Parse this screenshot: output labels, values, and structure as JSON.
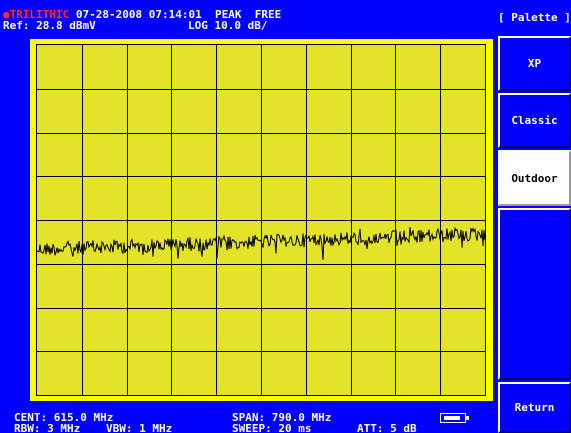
{
  "header": {
    "brand": "TRILITHIC",
    "datetime": "07-28-2008 07:14:01",
    "detector": "PEAK",
    "run_mode": "FREE",
    "ref_level": "Ref: 28.8 dBmV",
    "scale": "LOG 10.0 dB/"
  },
  "footer": {
    "center": "CENT: 615.0 MHz",
    "span": "SPAN: 790.0 MHz",
    "rbw": "RBW: 3 MHz",
    "vbw": "VBW: 1 MHz",
    "sweep": "SWEEP: 20 ms",
    "att": "ATT: 5 dB"
  },
  "menu": {
    "title": "[ Palette ]",
    "items": [
      {
        "label": "XP",
        "selected": false
      },
      {
        "label": "Classic",
        "selected": false
      },
      {
        "label": "Outdoor",
        "selected": true
      },
      {
        "label": "",
        "selected": false
      },
      {
        "label": "Return",
        "selected": false
      }
    ]
  },
  "colors": {
    "background": "#0000ff",
    "graticule_bg": "#ffff00",
    "grid_bg": "#e3e32a",
    "grid_lines": "#000000",
    "trace": "#000000",
    "brand": "#ff2a2a",
    "selected_key": "#ffffff"
  },
  "graticule": {
    "divisions_x": 10,
    "divisions_y": 8
  },
  "trace": {
    "type": "noise-floor",
    "level_div_from_top": 4.6,
    "tilt_div": 0.35
  }
}
